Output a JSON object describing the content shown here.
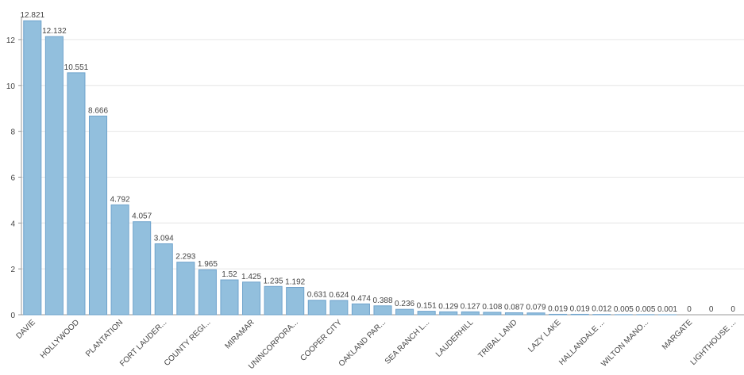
{
  "chart_data": {
    "type": "bar",
    "categories": [
      "DAVIE",
      null,
      "HOLLYWOOD",
      null,
      "PLANTATION",
      null,
      "FORT LAUDER...",
      null,
      "COUNTY REGI...",
      null,
      "MIRAMAR",
      null,
      "UNINCORPORA...",
      null,
      "COOPER CITY",
      null,
      "OAKLAND PAR...",
      null,
      "SEA RANCH L...",
      null,
      "LAUDERHILL",
      null,
      "TRIBAL LAND",
      null,
      "LAZY LAKE",
      null,
      "HALLANDALE ...",
      null,
      "WILTON MANO...",
      null,
      "MARGATE",
      null,
      "LIGHTHOUSE ..."
    ],
    "values": [
      12.821,
      12.132,
      10.551,
      8.666,
      4.792,
      4.057,
      3.094,
      2.293,
      1.965,
      1.52,
      1.425,
      1.235,
      1.192,
      0.631,
      0.624,
      0.474,
      0.388,
      0.236,
      0.151,
      0.129,
      0.127,
      0.108,
      0.087,
      0.079,
      0.019,
      0.019,
      0.012,
      0.005,
      0.005,
      0.001,
      0,
      0,
      0
    ],
    "color": "#92bfdd",
    "ylim": [
      0,
      13
    ],
    "yticks": [
      0,
      2,
      4,
      6,
      8,
      10,
      12
    ],
    "grid": true
  }
}
